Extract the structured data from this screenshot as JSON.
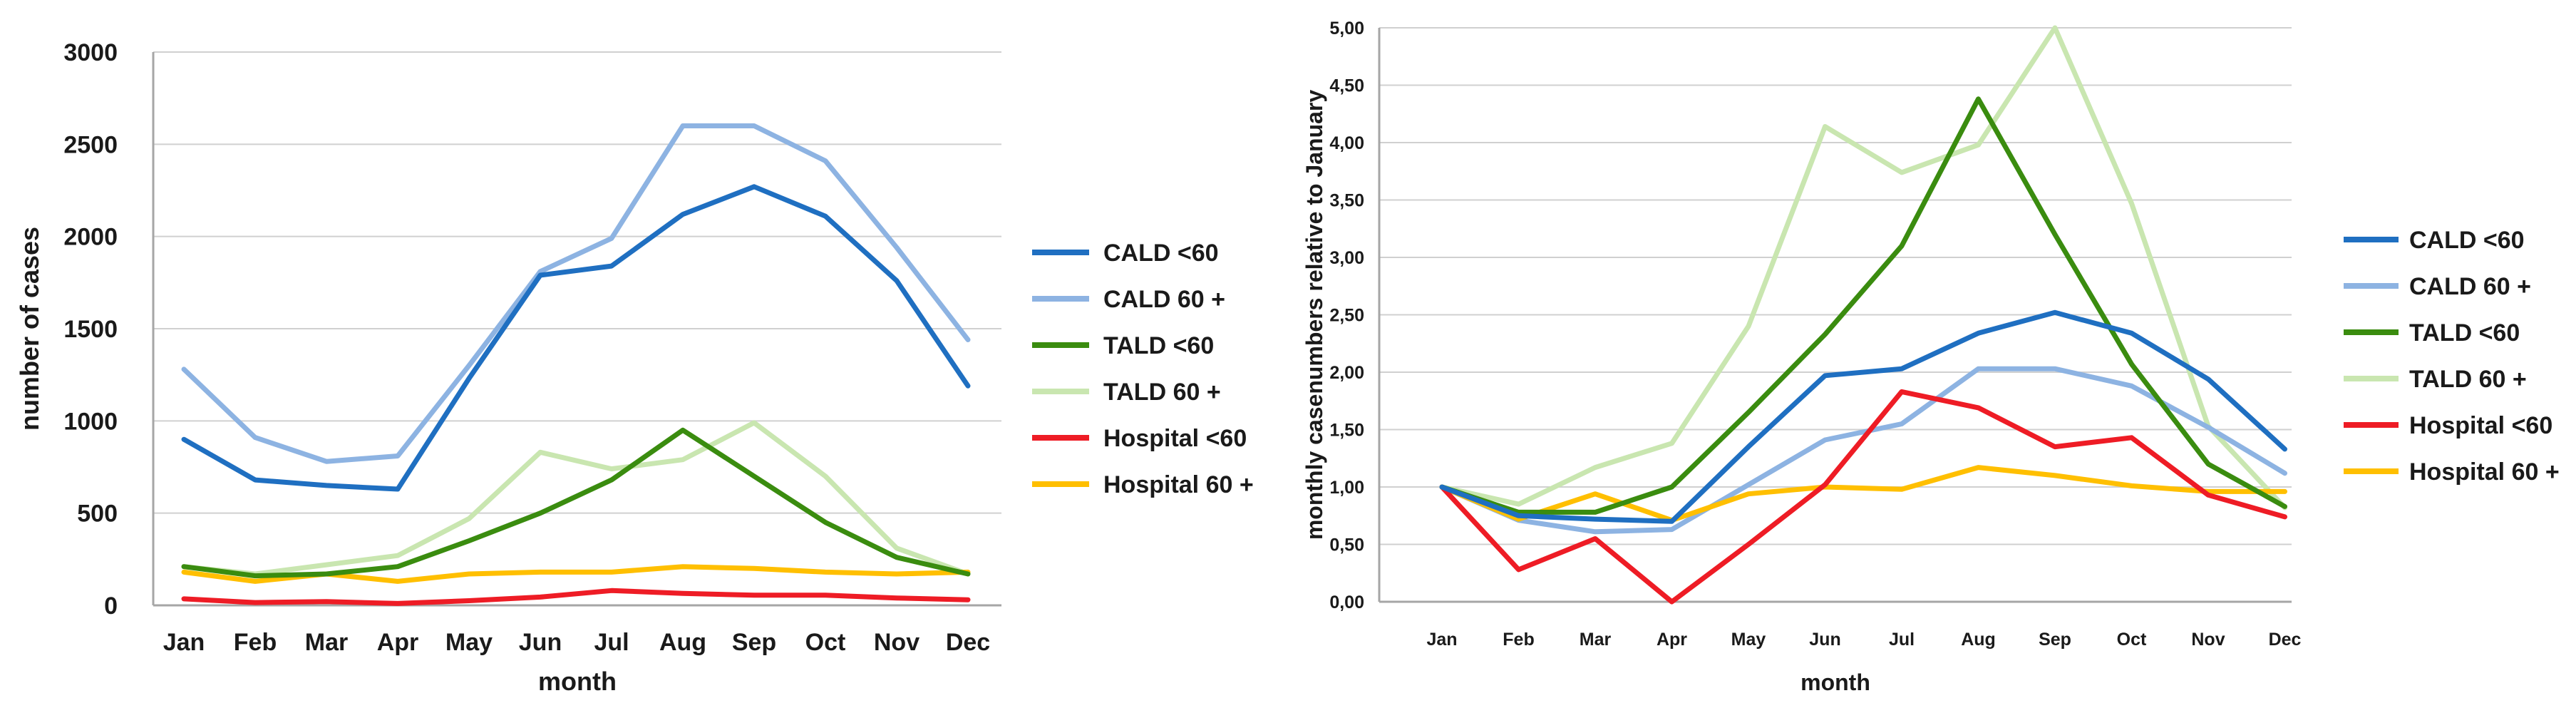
{
  "chart_data": [
    {
      "type": "line",
      "title": "",
      "xlabel": "month",
      "ylabel": "number of cases",
      "categories": [
        "Jan",
        "Feb",
        "Mar",
        "Apr",
        "May",
        "Jun",
        "Jul",
        "Aug",
        "Sep",
        "Oct",
        "Nov",
        "Dec"
      ],
      "ylim": [
        0,
        3000
      ],
      "yticks": [
        0,
        500,
        1000,
        1500,
        2000,
        2500,
        3000
      ],
      "ytick_labels": [
        "0",
        "500",
        "1000",
        "1500",
        "2000",
        "2500",
        "3000"
      ],
      "grid": true,
      "legend_position": "right",
      "series": [
        {
          "name": "CALD <60",
          "color": "#1f6fc1",
          "values": [
            900,
            680,
            650,
            630,
            1230,
            1790,
            1840,
            2120,
            2270,
            2110,
            1760,
            1190
          ]
        },
        {
          "name": "CALD 60 +",
          "color": "#8db3e2",
          "values": [
            1280,
            910,
            780,
            810,
            1300,
            1810,
            1990,
            2600,
            2600,
            2410,
            1940,
            1440
          ]
        },
        {
          "name": "TALD <60",
          "color": "#3a8c0f",
          "values": [
            210,
            160,
            170,
            210,
            350,
            500,
            680,
            950,
            700,
            450,
            260,
            170
          ]
        },
        {
          "name": "TALD 60 +",
          "color": "#c9e6b0",
          "values": [
            210,
            170,
            220,
            270,
            470,
            830,
            740,
            790,
            990,
            700,
            310,
            170
          ]
        },
        {
          "name": "Hospital <60",
          "color": "#ee1c25",
          "values": [
            35,
            15,
            20,
            10,
            25,
            45,
            80,
            65,
            55,
            55,
            40,
            30
          ]
        },
        {
          "name": "Hospital 60 +",
          "color": "#ffbf00",
          "values": [
            180,
            130,
            170,
            130,
            170,
            180,
            180,
            210,
            200,
            180,
            170,
            180
          ]
        }
      ]
    },
    {
      "type": "line",
      "title": "",
      "xlabel": "month",
      "ylabel": "monthly casenumbers relative to January",
      "categories": [
        "Jan",
        "Feb",
        "Mar",
        "Apr",
        "May",
        "Jun",
        "Jul",
        "Aug",
        "Sep",
        "Oct",
        "Nov",
        "Dec"
      ],
      "ylim": [
        0,
        5
      ],
      "yticks": [
        0,
        0.5,
        1,
        1.5,
        2,
        2.5,
        3,
        3.5,
        4,
        4.5,
        5
      ],
      "ytick_labels": [
        "0,00",
        "0,50",
        "1,00",
        "1,50",
        "2,00",
        "2,50",
        "3,00",
        "3,50",
        "4,00",
        "4,50",
        "5,00"
      ],
      "grid": true,
      "legend_position": "right",
      "series": [
        {
          "name": "CALD <60",
          "color": "#1f6fc1",
          "values": [
            1.0,
            0.75,
            0.72,
            0.7,
            1.35,
            1.97,
            2.03,
            2.34,
            2.52,
            2.34,
            1.94,
            1.33
          ]
        },
        {
          "name": "CALD 60 +",
          "color": "#8db3e2",
          "values": [
            1.0,
            0.71,
            0.61,
            0.63,
            1.02,
            1.41,
            1.55,
            2.03,
            2.03,
            1.88,
            1.52,
            1.12
          ]
        },
        {
          "name": "TALD <60",
          "color": "#3a8c0f",
          "values": [
            1.0,
            0.78,
            0.78,
            1.0,
            1.65,
            2.33,
            3.1,
            4.38,
            3.2,
            2.07,
            1.2,
            0.83
          ]
        },
        {
          "name": "TALD 60 +",
          "color": "#c9e6b0",
          "values": [
            1.0,
            0.85,
            1.17,
            1.38,
            2.4,
            4.14,
            3.74,
            3.98,
            5.0,
            3.47,
            1.53,
            0.82
          ]
        },
        {
          "name": "Hospital <60",
          "color": "#ee1c25",
          "values": [
            1.0,
            0.28,
            0.55,
            0.0,
            0.5,
            1.02,
            1.83,
            1.69,
            1.35,
            1.43,
            0.93,
            0.74
          ]
        },
        {
          "name": "Hospital 60 +",
          "color": "#ffbf00",
          "values": [
            1.0,
            0.72,
            0.94,
            0.71,
            0.94,
            1.0,
            0.98,
            1.17,
            1.1,
            1.01,
            0.96,
            0.96
          ]
        }
      ]
    }
  ]
}
